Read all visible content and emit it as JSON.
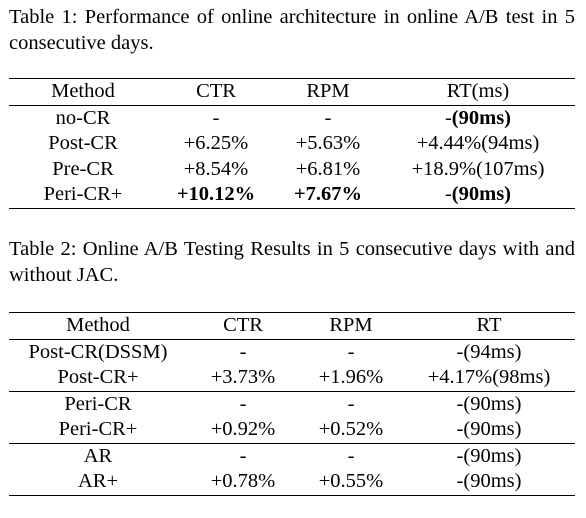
{
  "table1": {
    "caption": "Table 1: Performance of online architecture in online A/B test in 5 consecutive days.",
    "headers": [
      "Method",
      "CTR",
      "RPM",
      "RT(ms)"
    ],
    "rows": [
      {
        "method": "no-CR",
        "ctr": "-",
        "rpm": "-",
        "rt_prefix": "-",
        "rt_bold": "(90ms)",
        "bold_ctr": false,
        "bold_rpm": false
      },
      {
        "method": "Post-CR",
        "ctr": "+6.25%",
        "rpm": "+5.63%",
        "rt_prefix": "+4.44%(94ms)",
        "rt_bold": "",
        "bold_ctr": false,
        "bold_rpm": false
      },
      {
        "method": "Pre-CR",
        "ctr": "+8.54%",
        "rpm": "+6.81%",
        "rt_prefix": "+18.9%(107ms)",
        "rt_bold": "",
        "bold_ctr": false,
        "bold_rpm": false
      },
      {
        "method": "Peri-CR+",
        "ctr": "+10.12%",
        "rpm": "+7.67%",
        "rt_prefix": "-",
        "rt_bold": "(90ms)",
        "bold_ctr": true,
        "bold_rpm": true
      }
    ]
  },
  "table2": {
    "caption": "Table 2: Online A/B Testing Results in 5 consecutive days with and without JAC.",
    "headers": [
      "Method",
      "CTR",
      "RPM",
      "RT"
    ],
    "rows": [
      {
        "method": "Post-CR(DSSM)",
        "ctr": "-",
        "rpm": "-",
        "rt": "-(94ms)",
        "group_start": false
      },
      {
        "method": "Post-CR+",
        "ctr": "+3.73%",
        "rpm": "+1.96%",
        "rt": "+4.17%(98ms)",
        "group_start": false
      },
      {
        "method": "Peri-CR",
        "ctr": "-",
        "rpm": "-",
        "rt": "-(90ms)",
        "group_start": true
      },
      {
        "method": "Peri-CR+",
        "ctr": "+0.92%",
        "rpm": "+0.52%",
        "rt": "-(90ms)",
        "group_start": false
      },
      {
        "method": "AR",
        "ctr": "-",
        "rpm": "-",
        "rt": "-(90ms)",
        "group_start": true
      },
      {
        "method": "AR+",
        "ctr": "+0.78%",
        "rpm": "+0.55%",
        "rt": "-(90ms)",
        "group_start": false
      }
    ]
  }
}
